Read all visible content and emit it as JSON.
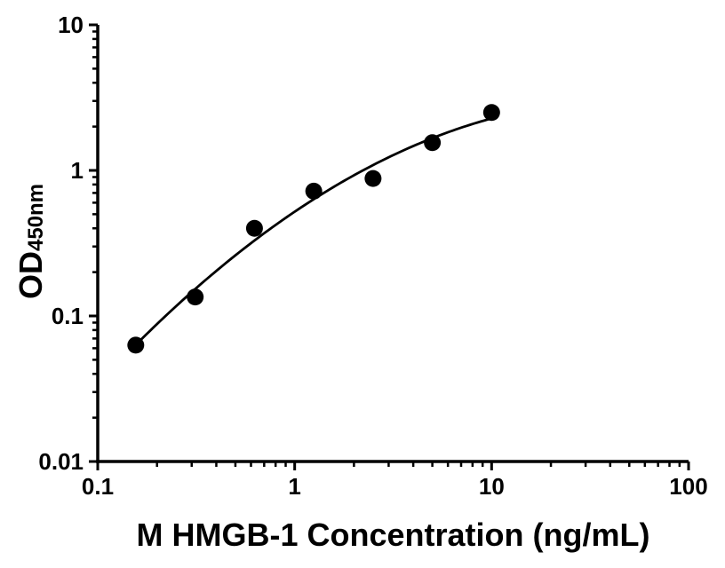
{
  "chart_data": {
    "type": "scatter",
    "title": "",
    "xlabel": "M HMGB-1 Concentration (ng/mL)",
    "ylabel": "OD450nm",
    "ylabel_main": "OD",
    "ylabel_sub": "450nm",
    "x_scale": "log",
    "y_scale": "log",
    "xlim": [
      0.1,
      100
    ],
    "ylim": [
      0.01,
      10
    ],
    "x_ticks": [
      0.1,
      1,
      10,
      100
    ],
    "x_tick_labels": [
      "0.1",
      "1",
      "10",
      "100"
    ],
    "y_ticks": [
      0.01,
      0.1,
      1,
      10
    ],
    "y_tick_labels": [
      "0.01",
      "0.1",
      "1",
      "10"
    ],
    "grid": false,
    "legend": false,
    "axis_color": "#000000",
    "background_color": "#ffffff",
    "series": [
      {
        "name": "standard-curve",
        "marker": "circle",
        "marker_color": "#000000",
        "line_color": "#000000",
        "fit": "log-log-quadratic",
        "x": [
          0.156,
          0.3125,
          0.625,
          1.25,
          2.5,
          5,
          10
        ],
        "y": [
          0.063,
          0.135,
          0.4,
          0.72,
          0.88,
          1.55,
          2.5
        ]
      }
    ]
  }
}
